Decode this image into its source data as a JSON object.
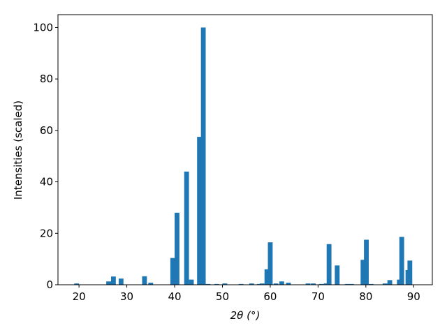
{
  "chart_data": {
    "type": "bar",
    "x_label": "2θ (°)",
    "y_label": "Intensities (scaled)",
    "color": "#1f77b4",
    "x": [
      19.5,
      26.2,
      27.2,
      28.8,
      33.7,
      35.0,
      39.6,
      40.5,
      42.5,
      43.5,
      45.2,
      46.0,
      47.0,
      48.8,
      50.5,
      53.9,
      56.1,
      57.7,
      58.3,
      59.3,
      60.0,
      61.2,
      62.4,
      63.8,
      67.9,
      69.0,
      70.7,
      71.7,
      72.3,
      74.0,
      76.1,
      77.0,
      79.4,
      80.1,
      81.1,
      84.0,
      85.0,
      87.0,
      87.5,
      88.8,
      89.2
    ],
    "values": [
      0.5,
      1.3,
      3.2,
      2.4,
      3.3,
      0.8,
      10.4,
      28,
      44,
      2,
      57.5,
      100,
      0.3,
      0.3,
      0.5,
      0.3,
      0.5,
      0.3,
      0.5,
      6,
      16.5,
      0.5,
      1.3,
      0.8,
      0.5,
      0.5,
      0.3,
      0.5,
      15.8,
      7.5,
      0.3,
      0.3,
      9.7,
      17.5,
      0.3,
      0.5,
      1.8,
      2,
      18.6,
      5.7,
      9.4
    ],
    "xlim": [
      15.6,
      93.9
    ],
    "ylim": [
      0,
      105
    ],
    "xticks": [
      20,
      30,
      40,
      50,
      60,
      70,
      80,
      90
    ],
    "yticks": [
      0,
      20,
      40,
      60,
      80,
      100
    ]
  }
}
